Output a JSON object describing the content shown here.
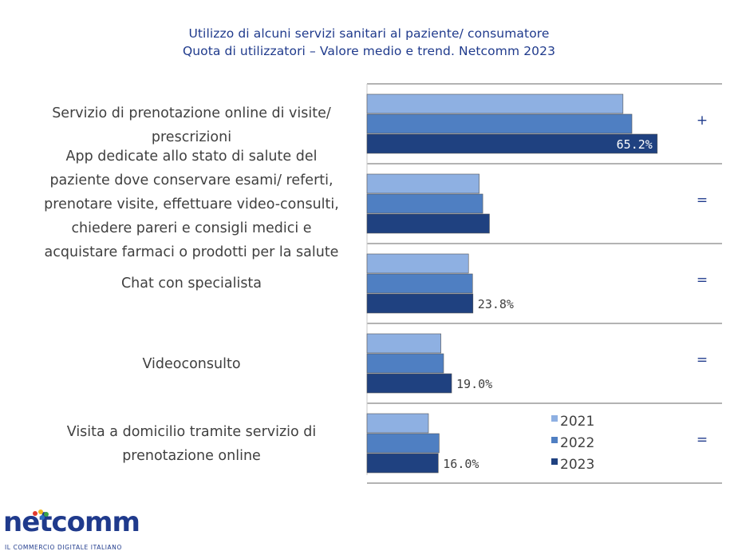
{
  "title_line1": "Utilizzo di alcuni servizi sanitari al paziente/ consumatore",
  "title_line2": "Quota di utilizzatori – Valore medio e trend. Netcomm 2023",
  "chart_data": {
    "type": "bar",
    "orientation": "horizontal",
    "categories": [
      [
        "Servizio di prenotazione online di visite/",
        "prescrizioni"
      ],
      [
        "App dedicate allo stato di salute del",
        "paziente dove conservare esami/ referti,",
        "prenotare visite, effettuare video-consulti,",
        "chiedere pareri e consigli medici e",
        "acquistare farmaci o prodotti per la salute"
      ],
      [
        "Chat con specialista"
      ],
      [
        "Videoconsulto"
      ],
      [
        "Visita a domicilio tramite servizio di",
        "prenotazione online"
      ]
    ],
    "series": [
      {
        "name": "2021",
        "color": "#8eb0e2",
        "values": [
          57.5,
          25.2,
          22.8,
          16.6,
          13.8
        ]
      },
      {
        "name": "2022",
        "color": "#4f7fc2",
        "values": [
          59.5,
          26.0,
          23.7,
          17.2,
          16.2
        ]
      },
      {
        "name": "2023",
        "color": "#1f4180",
        "values": [
          65.2,
          27.5,
          23.8,
          19.0,
          16.0
        ]
      }
    ],
    "data_labels": [
      "65.2%",
      "",
      "23.8%",
      "19.0%",
      "16.0%"
    ],
    "trends": [
      "+",
      "=",
      "=",
      "=",
      "="
    ],
    "xlim": [
      0,
      80
    ],
    "grid": false,
    "legend_position": "bottom-right"
  },
  "logo": {
    "wordmark": "netcomm",
    "tagline": "IL COMMERCIO DIGITALE ITALIANO",
    "dot_colors": [
      "#e2392d",
      "#f2b81c",
      "#3aa34a",
      "#2b6ec2"
    ]
  }
}
